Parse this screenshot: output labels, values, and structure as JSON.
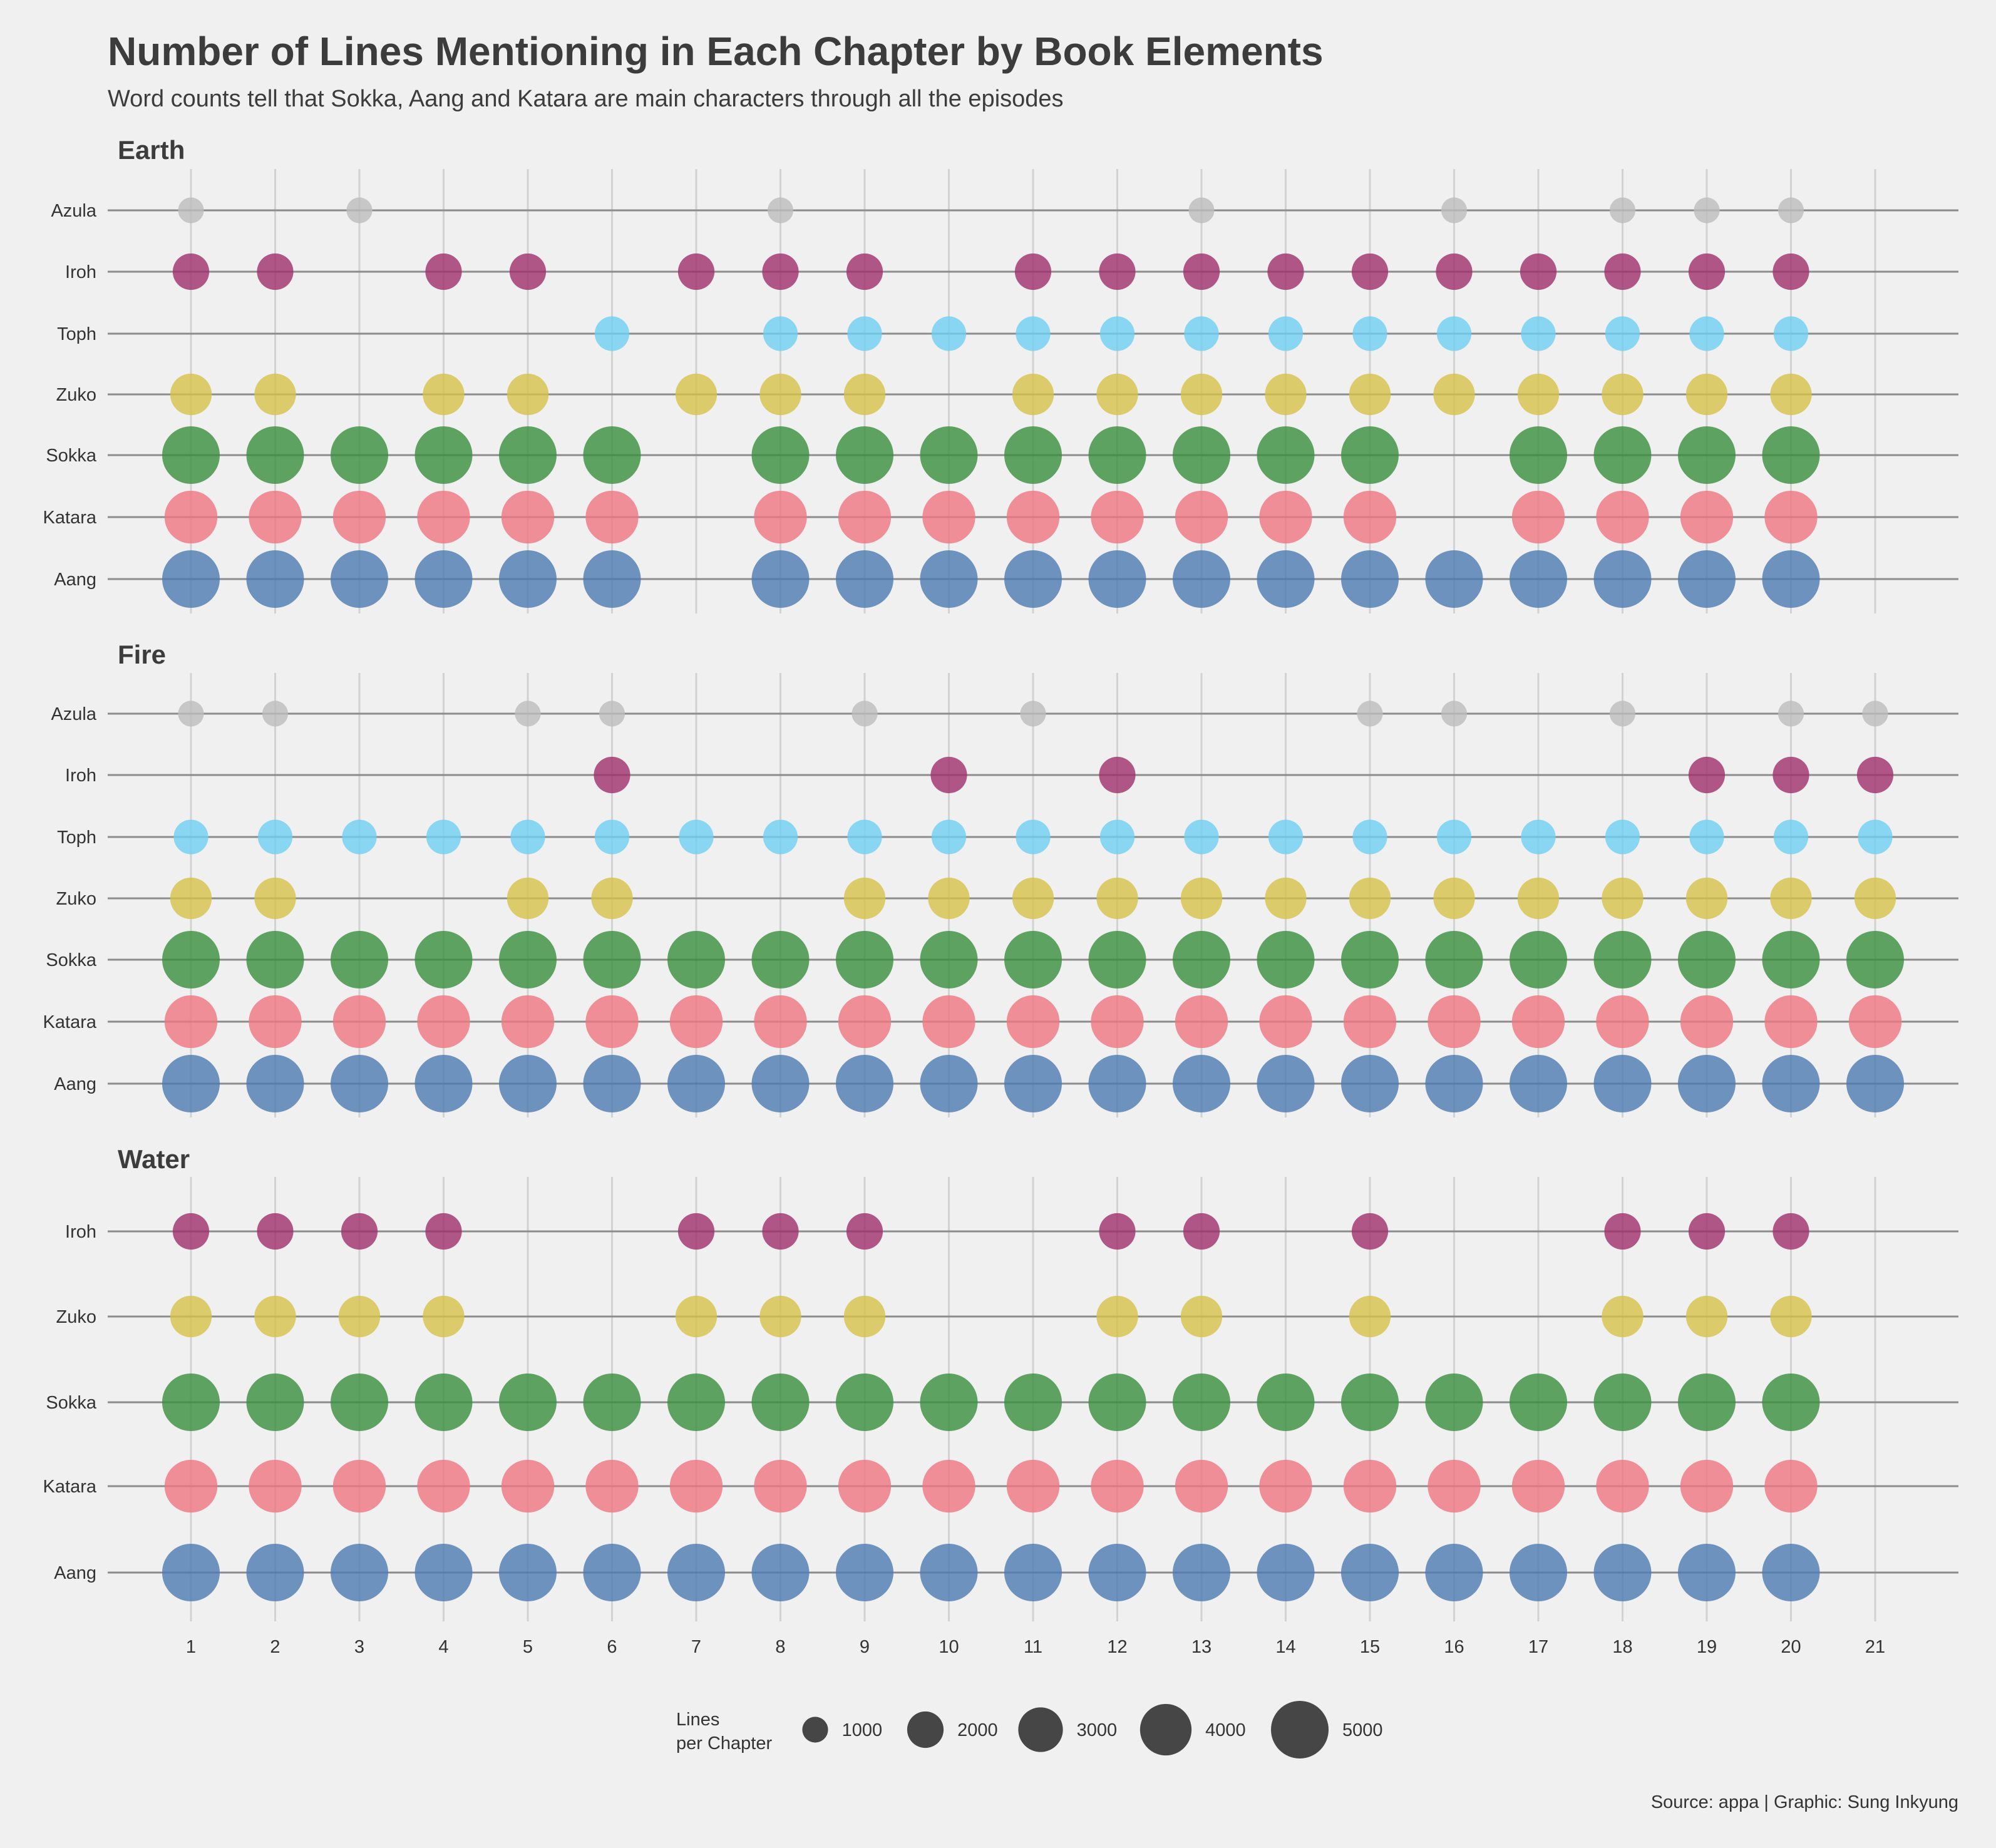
{
  "title": "Number of Lines Mentioning in Each Chapter by Book Elements",
  "subtitle": "Word counts tell that Sokka, Aang and Katara are main characters through all the episodes",
  "caption": "Source: appa | Graphic: Sung Inkyung",
  "colors": {
    "background": "#f0f0f0",
    "Azula": "#bdbdbd",
    "Iroh": "#a0306d",
    "Toph": "#6ecff2",
    "Zuko": "#d7c24a",
    "Sokka": "#3a8f3f",
    "Katara": "#f07682",
    "Aang": "#4c7bb0",
    "legend_point": "#333333"
  },
  "chart_data": {
    "type": "scatter",
    "encoding": "bubble size = lines per chapter",
    "x_axis": {
      "label": "",
      "ticks": [
        1,
        2,
        3,
        4,
        5,
        6,
        7,
        8,
        9,
        10,
        11,
        12,
        13,
        14,
        15,
        16,
        17,
        18,
        19,
        20,
        21
      ]
    },
    "legend": {
      "title_lines": [
        "Lines",
        "per Chapter"
      ],
      "values": [
        1000,
        2000,
        3000,
        4000,
        5000
      ],
      "labels": [
        "1000",
        "2000",
        "3000",
        "4000",
        "5000"
      ],
      "placement": "bottom"
    },
    "facets": [
      {
        "name": "Earth",
        "characters": [
          "Azula",
          "Iroh",
          "Toph",
          "Zuko",
          "Sokka",
          "Katara",
          "Aang"
        ],
        "series": [
          {
            "name": "Azula",
            "chapters": [
              1,
              3,
              8,
              13,
              16,
              18,
              19,
              20
            ],
            "value": 1000
          },
          {
            "name": "Iroh",
            "chapters": [
              1,
              2,
              4,
              5,
              7,
              8,
              9,
              11,
              12,
              13,
              14,
              15,
              16,
              17,
              18,
              19,
              20
            ],
            "value": 2000
          },
          {
            "name": "Toph",
            "chapters": [
              6,
              8,
              9,
              10,
              11,
              12,
              13,
              14,
              15,
              16,
              17,
              18,
              19,
              20
            ],
            "value": 1800
          },
          {
            "name": "Zuko",
            "chapters": [
              1,
              2,
              4,
              5,
              7,
              8,
              9,
              11,
              12,
              13,
              14,
              15,
              16,
              17,
              18,
              19,
              20
            ],
            "value": 2600
          },
          {
            "name": "Sokka",
            "chapters": [
              1,
              2,
              3,
              4,
              5,
              6,
              8,
              9,
              10,
              11,
              12,
              13,
              14,
              15,
              17,
              18,
              19,
              20
            ],
            "value": 5000
          },
          {
            "name": "Katara",
            "chapters": [
              1,
              2,
              3,
              4,
              5,
              6,
              8,
              9,
              10,
              11,
              12,
              13,
              14,
              15,
              17,
              18,
              19,
              20
            ],
            "value": 4200
          },
          {
            "name": "Aang",
            "chapters": [
              1,
              2,
              3,
              4,
              5,
              6,
              8,
              9,
              10,
              11,
              12,
              13,
              14,
              15,
              16,
              17,
              18,
              19,
              20
            ],
            "value": 5000
          }
        ]
      },
      {
        "name": "Fire",
        "characters": [
          "Azula",
          "Iroh",
          "Toph",
          "Zuko",
          "Sokka",
          "Katara",
          "Aang"
        ],
        "series": [
          {
            "name": "Azula",
            "chapters": [
              1,
              2,
              5,
              6,
              9,
              11,
              15,
              16,
              18,
              20,
              21
            ],
            "value": 1000
          },
          {
            "name": "Iroh",
            "chapters": [
              6,
              10,
              12,
              19,
              20,
              21
            ],
            "value": 2000
          },
          {
            "name": "Toph",
            "chapters": [
              1,
              2,
              3,
              4,
              5,
              6,
              7,
              8,
              9,
              10,
              11,
              12,
              13,
              14,
              15,
              16,
              17,
              18,
              19,
              20,
              21
            ],
            "value": 1800
          },
          {
            "name": "Zuko",
            "chapters": [
              1,
              2,
              5,
              6,
              9,
              10,
              11,
              12,
              13,
              14,
              15,
              16,
              17,
              18,
              19,
              20,
              21
            ],
            "value": 2600
          },
          {
            "name": "Sokka",
            "chapters": [
              1,
              2,
              3,
              4,
              5,
              6,
              7,
              8,
              9,
              10,
              11,
              12,
              13,
              14,
              15,
              16,
              17,
              18,
              19,
              20,
              21
            ],
            "value": 5000
          },
          {
            "name": "Katara",
            "chapters": [
              1,
              2,
              3,
              4,
              5,
              6,
              7,
              8,
              9,
              10,
              11,
              12,
              13,
              14,
              15,
              16,
              17,
              18,
              19,
              20,
              21
            ],
            "value": 4200
          },
          {
            "name": "Aang",
            "chapters": [
              1,
              2,
              3,
              4,
              5,
              6,
              7,
              8,
              9,
              10,
              11,
              12,
              13,
              14,
              15,
              16,
              17,
              18,
              19,
              20,
              21
            ],
            "value": 5000
          }
        ]
      },
      {
        "name": "Water",
        "characters": [
          "Iroh",
          "Zuko",
          "Sokka",
          "Katara",
          "Aang"
        ],
        "series": [
          {
            "name": "Iroh",
            "chapters": [
              1,
              2,
              3,
              4,
              7,
              8,
              9,
              12,
              13,
              15,
              18,
              19,
              20
            ],
            "value": 2000
          },
          {
            "name": "Zuko",
            "chapters": [
              1,
              2,
              3,
              4,
              7,
              8,
              9,
              12,
              13,
              15,
              18,
              19,
              20
            ],
            "value": 2600
          },
          {
            "name": "Sokka",
            "chapters": [
              1,
              2,
              3,
              4,
              5,
              6,
              7,
              8,
              9,
              10,
              11,
              12,
              13,
              14,
              15,
              16,
              17,
              18,
              19,
              20
            ],
            "value": 5000
          },
          {
            "name": "Katara",
            "chapters": [
              1,
              2,
              3,
              4,
              5,
              6,
              7,
              8,
              9,
              10,
              11,
              12,
              13,
              14,
              15,
              16,
              17,
              18,
              19,
              20
            ],
            "value": 4200
          },
          {
            "name": "Aang",
            "chapters": [
              1,
              2,
              3,
              4,
              5,
              6,
              7,
              8,
              9,
              10,
              11,
              12,
              13,
              14,
              15,
              16,
              17,
              18,
              19,
              20
            ],
            "value": 5000
          }
        ]
      }
    ]
  }
}
